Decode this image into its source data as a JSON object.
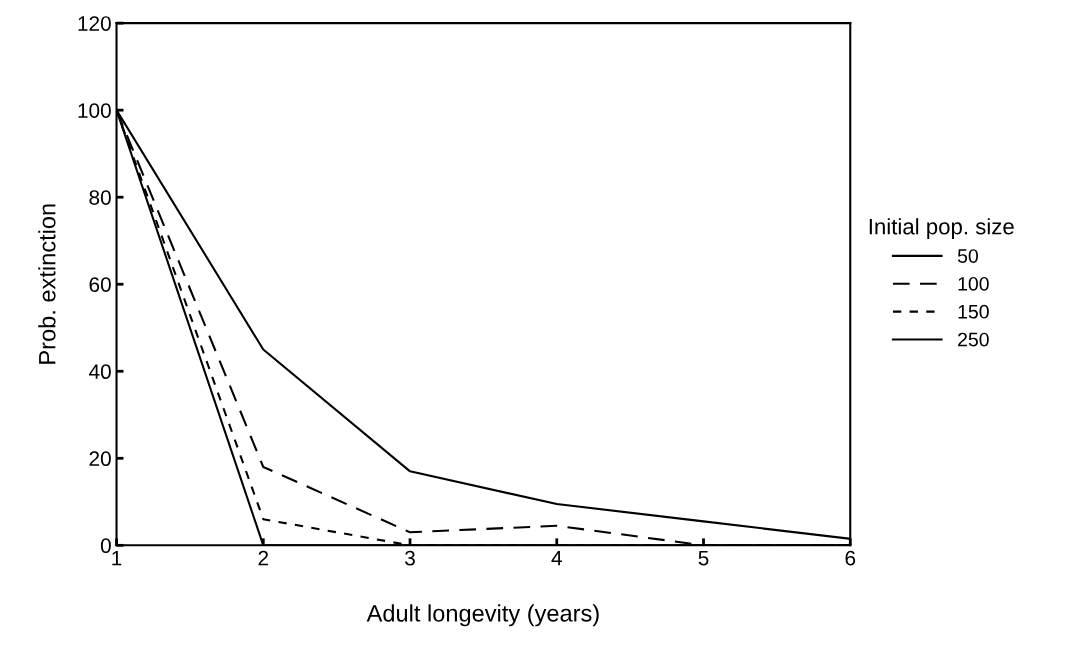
{
  "chart_data": {
    "type": "line",
    "xlabel": "Adult longevity (years)",
    "ylabel": "Prob. extinction",
    "legend_title": "Initial pop. size",
    "x": [
      1,
      2,
      3,
      4,
      5,
      6
    ],
    "series": [
      {
        "name": "50",
        "color": "#000000",
        "line_style": "solid",
        "values": [
          100,
          45,
          17,
          9.5,
          5.5,
          1.5
        ]
      },
      {
        "name": "100",
        "color": "#000000",
        "line_style": "dashed",
        "values": [
          100,
          18,
          3,
          4.5,
          0,
          0
        ]
      },
      {
        "name": "150",
        "color": "#000000",
        "line_style": "dotted",
        "values": [
          100,
          6,
          0,
          0,
          0,
          0
        ]
      },
      {
        "name": "250",
        "color": "#000000",
        "line_style": "solid",
        "values": [
          100,
          0,
          0,
          0,
          0,
          0
        ]
      }
    ],
    "xlim": [
      1,
      6
    ],
    "ylim": [
      0,
      120
    ],
    "xticks": [
      1,
      2,
      3,
      4,
      5,
      6
    ],
    "yticks": [
      0,
      20,
      40,
      60,
      80,
      100,
      120
    ],
    "grid": false,
    "legend": "right",
    "marker": "none"
  }
}
